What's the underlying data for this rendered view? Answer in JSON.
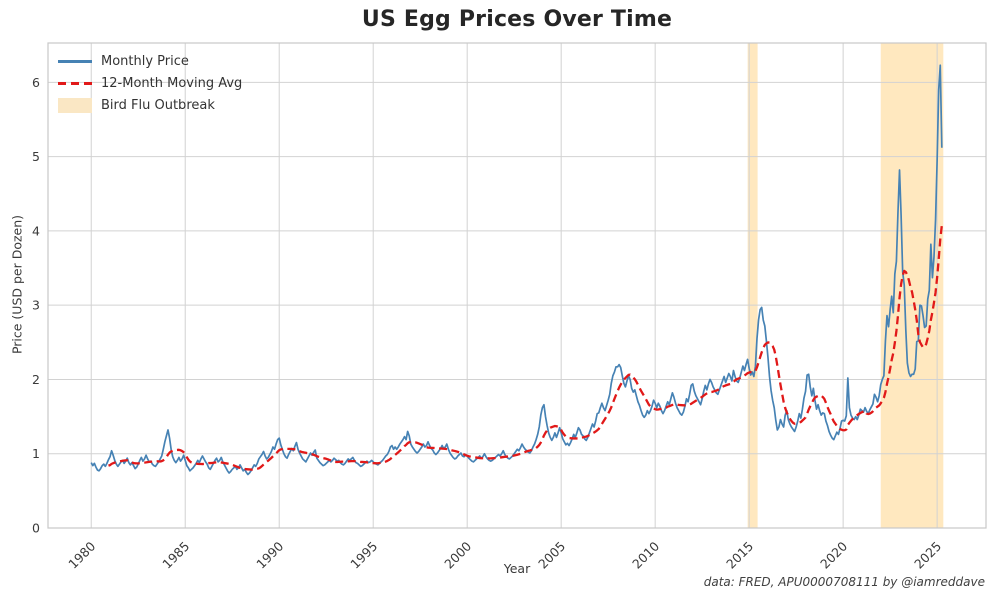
{
  "chart_data": {
    "type": "line",
    "title": "US Egg Prices Over Time",
    "xlabel": "Year",
    "ylabel": "Price (USD per Dozen)",
    "attribution": "data: FRED, APU0000708111 by @iamreddave",
    "x_ticks": [
      1980,
      1985,
      1990,
      1995,
      2000,
      2005,
      2010,
      2015,
      2020,
      2025
    ],
    "y_ticks": [
      0,
      1,
      2,
      3,
      4,
      5,
      6
    ],
    "xlim": [
      1977.7,
      2027.6
    ],
    "ylim": [
      0,
      6.53
    ],
    "grid": true,
    "legend_position": "upper-left",
    "colors": {
      "monthly_line": "#4682b4",
      "moving_avg_line": "#e11919",
      "band_fill": "#ffa500",
      "band_opacity": 0.25,
      "grid_line": "#d2d2d2",
      "plot_border": "#c8c8c8"
    },
    "series": [
      {
        "name": "Monthly Price",
        "type": "line",
        "style": "solid",
        "color": "#4682b4",
        "frequency": "monthly",
        "start_year": 1980,
        "start_month": 1,
        "values": [
          0.88,
          0.84,
          0.87,
          0.82,
          0.78,
          0.77,
          0.8,
          0.84,
          0.86,
          0.83,
          0.87,
          0.92,
          0.96,
          1.04,
          0.98,
          0.91,
          0.86,
          0.83,
          0.86,
          0.89,
          0.91,
          0.87,
          0.9,
          0.94,
          0.88,
          0.85,
          0.88,
          0.84,
          0.8,
          0.82,
          0.86,
          0.91,
          0.95,
          0.9,
          0.93,
          0.98,
          0.93,
          0.89,
          0.9,
          0.86,
          0.84,
          0.83,
          0.86,
          0.89,
          0.93,
          0.97,
          1.06,
          1.16,
          1.24,
          1.32,
          1.21,
          1.06,
          0.96,
          0.91,
          0.88,
          0.91,
          0.95,
          0.9,
          0.93,
          0.98,
          0.91,
          0.84,
          0.81,
          0.77,
          0.79,
          0.81,
          0.84,
          0.87,
          0.91,
          0.88,
          0.93,
          0.97,
          0.93,
          0.89,
          0.86,
          0.81,
          0.79,
          0.83,
          0.87,
          0.91,
          0.94,
          0.89,
          0.91,
          0.95,
          0.89,
          0.85,
          0.81,
          0.77,
          0.74,
          0.76,
          0.79,
          0.81,
          0.83,
          0.79,
          0.81,
          0.85,
          0.81,
          0.77,
          0.79,
          0.75,
          0.72,
          0.74,
          0.77,
          0.81,
          0.85,
          0.83,
          0.87,
          0.93,
          0.96,
          0.99,
          1.03,
          0.97,
          0.93,
          0.95,
          0.99,
          1.03,
          1.09,
          1.06,
          1.13,
          1.19,
          1.21,
          1.12,
          1.06,
          1.0,
          0.96,
          0.94,
          0.99,
          1.03,
          1.07,
          1.04,
          1.1,
          1.15,
          1.06,
          1.01,
          0.97,
          0.93,
          0.91,
          0.89,
          0.93,
          0.97,
          1.01,
          0.98,
          1.02,
          1.05,
          0.94,
          0.91,
          0.88,
          0.86,
          0.84,
          0.85,
          0.87,
          0.89,
          0.91,
          0.89,
          0.91,
          0.94,
          0.92,
          0.9,
          0.91,
          0.88,
          0.86,
          0.85,
          0.87,
          0.9,
          0.93,
          0.91,
          0.93,
          0.95,
          0.91,
          0.88,
          0.87,
          0.85,
          0.83,
          0.84,
          0.86,
          0.88,
          0.9,
          0.88,
          0.89,
          0.91,
          0.89,
          0.87,
          0.86,
          0.85,
          0.87,
          0.89,
          0.91,
          0.94,
          0.97,
          0.99,
          1.03,
          1.09,
          1.11,
          1.06,
          1.09,
          1.06,
          1.09,
          1.13,
          1.16,
          1.19,
          1.23,
          1.19,
          1.3,
          1.24,
          1.13,
          1.09,
          1.06,
          1.03,
          1.01,
          1.03,
          1.06,
          1.09,
          1.13,
          1.09,
          1.11,
          1.16,
          1.11,
          1.07,
          1.05,
          1.01,
          0.99,
          1.01,
          1.04,
          1.07,
          1.11,
          1.07,
          1.09,
          1.13,
          1.06,
          1.01,
          0.98,
          0.95,
          0.93,
          0.94,
          0.97,
          0.99,
          1.01,
          0.97,
          0.96,
          0.99,
          0.97,
          0.94,
          0.92,
          0.9,
          0.89,
          0.91,
          0.93,
          0.95,
          0.97,
          0.94,
          0.96,
          1.0,
          0.96,
          0.93,
          0.91,
          0.9,
          0.91,
          0.93,
          0.95,
          0.97,
          0.99,
          0.97,
          1.0,
          1.04,
          0.99,
          0.96,
          0.94,
          0.93,
          0.95,
          0.97,
          1.0,
          1.03,
          1.06,
          1.04,
          1.08,
          1.13,
          1.09,
          1.06,
          1.04,
          1.02,
          1.01,
          1.04,
          1.09,
          1.13,
          1.19,
          1.26,
          1.36,
          1.52,
          1.62,
          1.66,
          1.5,
          1.38,
          1.28,
          1.22,
          1.18,
          1.22,
          1.28,
          1.22,
          1.28,
          1.35,
          1.28,
          1.2,
          1.16,
          1.12,
          1.14,
          1.11,
          1.15,
          1.2,
          1.26,
          1.22,
          1.28,
          1.35,
          1.32,
          1.26,
          1.24,
          1.2,
          1.18,
          1.22,
          1.28,
          1.34,
          1.4,
          1.36,
          1.44,
          1.54,
          1.55,
          1.62,
          1.68,
          1.62,
          1.58,
          1.65,
          1.72,
          1.8,
          1.95,
          2.05,
          2.1,
          2.17,
          2.17,
          2.2,
          2.16,
          2.05,
          1.95,
          1.9,
          1.98,
          2.05,
          2.0,
          1.88,
          1.83,
          1.86,
          1.78,
          1.7,
          1.65,
          1.58,
          1.52,
          1.49,
          1.52,
          1.58,
          1.54,
          1.58,
          1.64,
          1.72,
          1.68,
          1.62,
          1.68,
          1.64,
          1.58,
          1.54,
          1.58,
          1.64,
          1.7,
          1.66,
          1.74,
          1.82,
          1.76,
          1.68,
          1.62,
          1.58,
          1.54,
          1.52,
          1.56,
          1.64,
          1.74,
          1.7,
          1.8,
          1.92,
          1.94,
          1.84,
          1.78,
          1.74,
          1.7,
          1.66,
          1.74,
          1.84,
          1.92,
          1.86,
          1.94,
          2.0,
          1.96,
          1.9,
          1.86,
          1.82,
          1.8,
          1.86,
          1.92,
          1.98,
          2.04,
          1.96,
          2.02,
          2.08,
          2.04,
          1.98,
          2.12,
          2.04,
          1.98,
          1.96,
          2.02,
          2.1,
          2.18,
          2.12,
          2.2,
          2.27,
          2.15,
          2.06,
          2.1,
          2.04,
          2.18,
          2.55,
          2.8,
          2.94,
          2.97,
          2.8,
          2.72,
          2.52,
          2.3,
          2.04,
          1.85,
          1.72,
          1.62,
          1.45,
          1.32,
          1.36,
          1.46,
          1.4,
          1.36,
          1.52,
          1.58,
          1.46,
          1.4,
          1.36,
          1.33,
          1.3,
          1.36,
          1.44,
          1.54,
          1.48,
          1.6,
          1.75,
          1.84,
          2.06,
          2.07,
          1.9,
          1.78,
          1.88,
          1.72,
          1.6,
          1.66,
          1.58,
          1.52,
          1.55,
          1.54,
          1.44,
          1.38,
          1.3,
          1.25,
          1.21,
          1.19,
          1.24,
          1.29,
          1.26,
          1.34,
          1.44,
          1.45,
          1.44,
          1.51,
          2.02,
          1.62,
          1.52,
          1.48,
          1.46,
          1.5,
          1.46,
          1.52,
          1.6,
          1.58,
          1.56,
          1.62,
          1.57,
          1.54,
          1.59,
          1.63,
          1.67,
          1.8,
          1.76,
          1.7,
          1.78,
          1.93,
          2.0,
          2.05,
          2.52,
          2.86,
          2.71,
          2.94,
          3.12,
          2.9,
          3.42,
          3.59,
          4.25,
          4.82,
          4.21,
          3.45,
          3.27,
          2.67,
          2.22,
          2.09,
          2.04,
          2.07,
          2.07,
          2.14,
          2.51,
          2.52,
          3.0,
          2.99,
          2.86,
          2.7,
          2.72,
          3.08,
          3.2,
          3.82,
          3.37,
          3.65,
          4.15,
          4.95,
          5.9,
          6.23,
          5.12
        ]
      },
      {
        "name": "12-Month Moving Avg",
        "type": "line",
        "style": "dashed",
        "color": "#e11919",
        "derived": "trailing 12-month mean of Monthly Price",
        "window": 12
      }
    ],
    "bands": {
      "label": "Bird Flu Outbreak",
      "color": "#ffa500",
      "opacity": 0.25,
      "ranges": [
        {
          "start": 2014.92,
          "end": 2015.45
        },
        {
          "start": 2022.0,
          "end": 2025.33
        }
      ]
    }
  }
}
